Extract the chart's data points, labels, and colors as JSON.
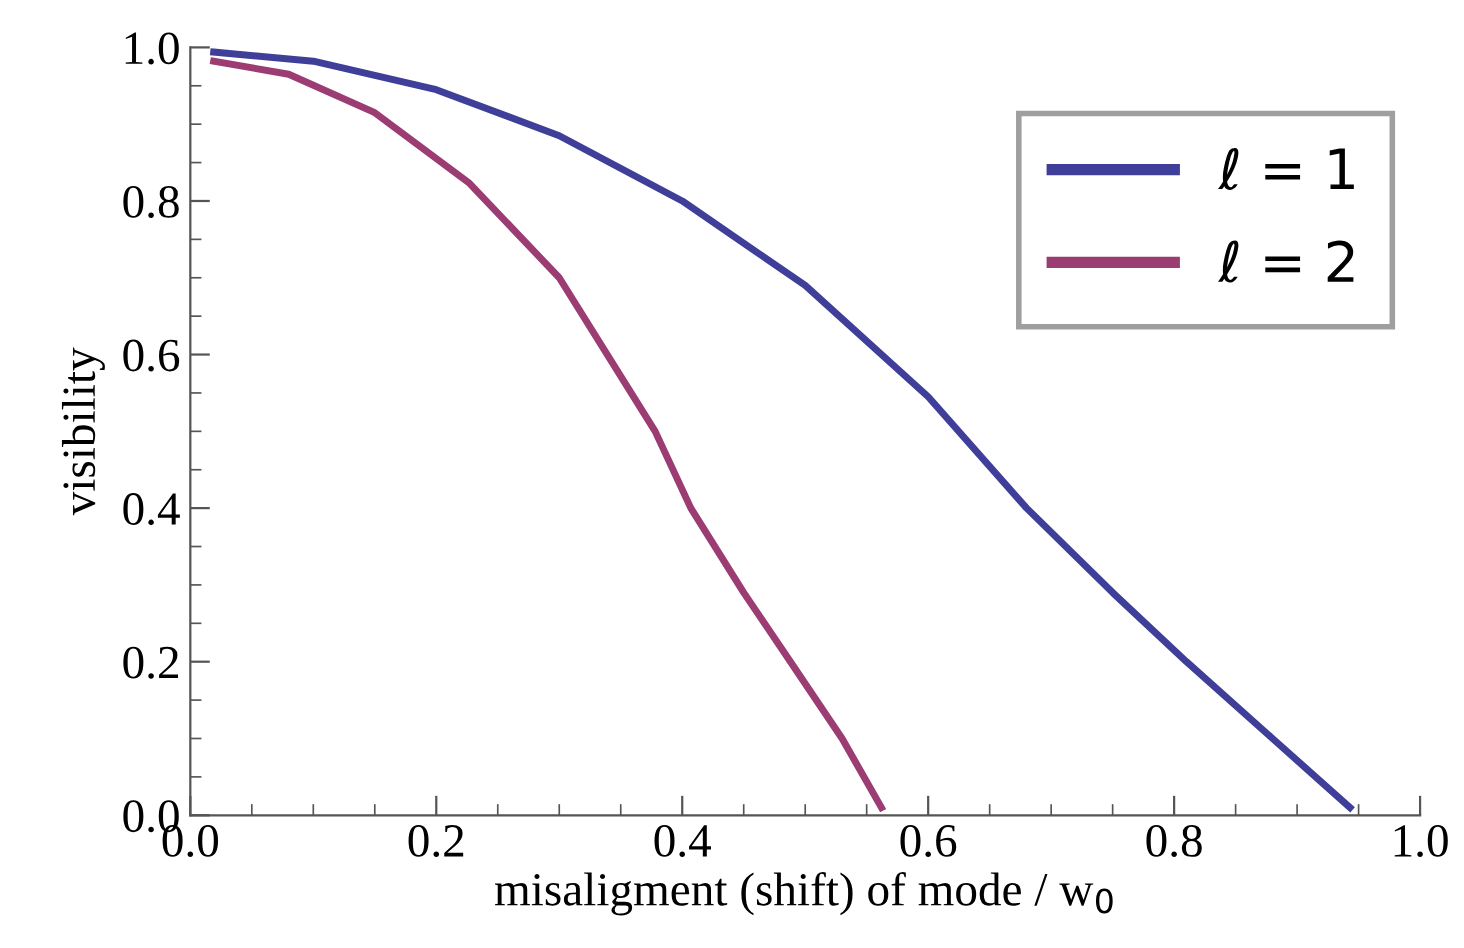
{
  "chart_data": {
    "type": "line",
    "xlabel": "misaligment (shift) of mode / w$_{0}$",
    "ylabel": "visibility",
    "xlim": [
      0,
      1
    ],
    "ylim": [
      0,
      1
    ],
    "xticks": [
      {
        "value": 0,
        "label": "0.0"
      },
      0.2,
      0.4,
      0.6,
      0.8,
      {
        "value": 1,
        "label": "1.0"
      }
    ],
    "yticks": [
      {
        "value": 0,
        "label": "0.0"
      },
      0.2,
      0.4,
      0.6,
      0.8,
      {
        "value": 1,
        "label": "1.0"
      }
    ],
    "grid": false,
    "legend": "top right",
    "marker": "none",
    "line_style": "solid",
    "series": [
      {
        "name": "ℓ = 1",
        "color": "#3f3f9a",
        "x": [
          0.019,
          0.1,
          0.2,
          0.3,
          0.4,
          0.5,
          0.6,
          0.68,
          0.75,
          0.81,
          0.88,
          0.943
        ],
        "values": [
          0.994,
          0.982,
          0.945,
          0.885,
          0.8,
          0.69,
          0.545,
          0.4,
          0.29,
          0.2,
          0.1,
          0.01
        ]
      },
      {
        "name": "ℓ = 2",
        "color": "#9b3d72",
        "x": [
          0.019,
          0.08,
          0.15,
          0.227,
          0.3,
          0.378,
          0.407,
          0.45,
          0.488,
          0.53,
          0.562
        ],
        "values": [
          0.982,
          0.965,
          0.915,
          0.823,
          0.7,
          0.5,
          0.4,
          0.29,
          0.2,
          0.1,
          0.01
        ]
      }
    ]
  }
}
